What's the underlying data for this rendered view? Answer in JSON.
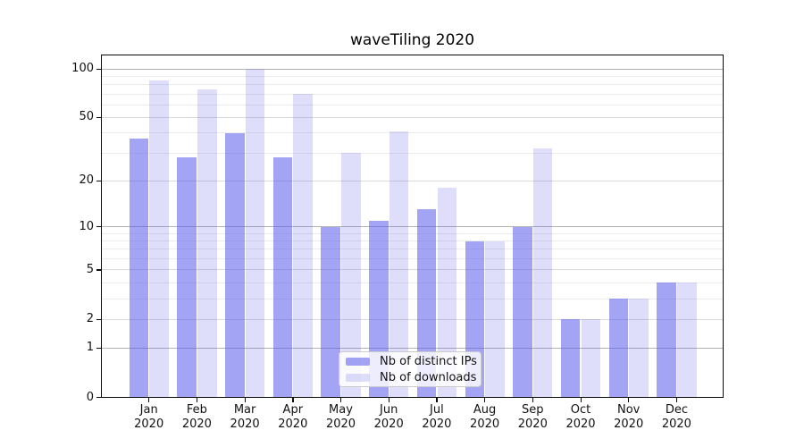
{
  "title": "waveTiling 2020",
  "chart_data": {
    "type": "bar",
    "title": "waveTiling 2020",
    "y_scale": "log10(value+1)",
    "grid": true,
    "categories": [
      "Jan",
      "Feb",
      "Mar",
      "Apr",
      "May",
      "Jun",
      "Jul",
      "Aug",
      "Sep",
      "Oct",
      "Nov",
      "Dec"
    ],
    "category_year": "2020",
    "series": [
      {
        "name": "Nb of distinct IPs",
        "color": "rgba(90,90,235,0.55)",
        "values": [
          37,
          28,
          40,
          28,
          10,
          11,
          13,
          8,
          10,
          2,
          3,
          4
        ]
      },
      {
        "name": "Nb of downloads",
        "color": "rgba(90,90,235,0.20)",
        "values": [
          85,
          75,
          100,
          70,
          30,
          41,
          18,
          8,
          32,
          2,
          3,
          4
        ]
      }
    ],
    "y_ticks_labeled": [
      0,
      1,
      2,
      5,
      10,
      20,
      50,
      100
    ],
    "y_gridlines_major": [
      1,
      2,
      5,
      10,
      20,
      50,
      100
    ],
    "y_gridlines_minor": [
      3,
      4,
      6,
      7,
      8,
      9,
      30,
      40,
      60,
      70,
      80,
      90
    ],
    "y_gridlines_power_of_ten": [
      1,
      10,
      100
    ],
    "ylim": [
      0,
      122
    ],
    "legend_position": "lower center",
    "xlabel": "",
    "ylabel": ""
  },
  "legend": {
    "items": [
      "Nb of distinct IPs",
      "Nb of downloads"
    ]
  }
}
